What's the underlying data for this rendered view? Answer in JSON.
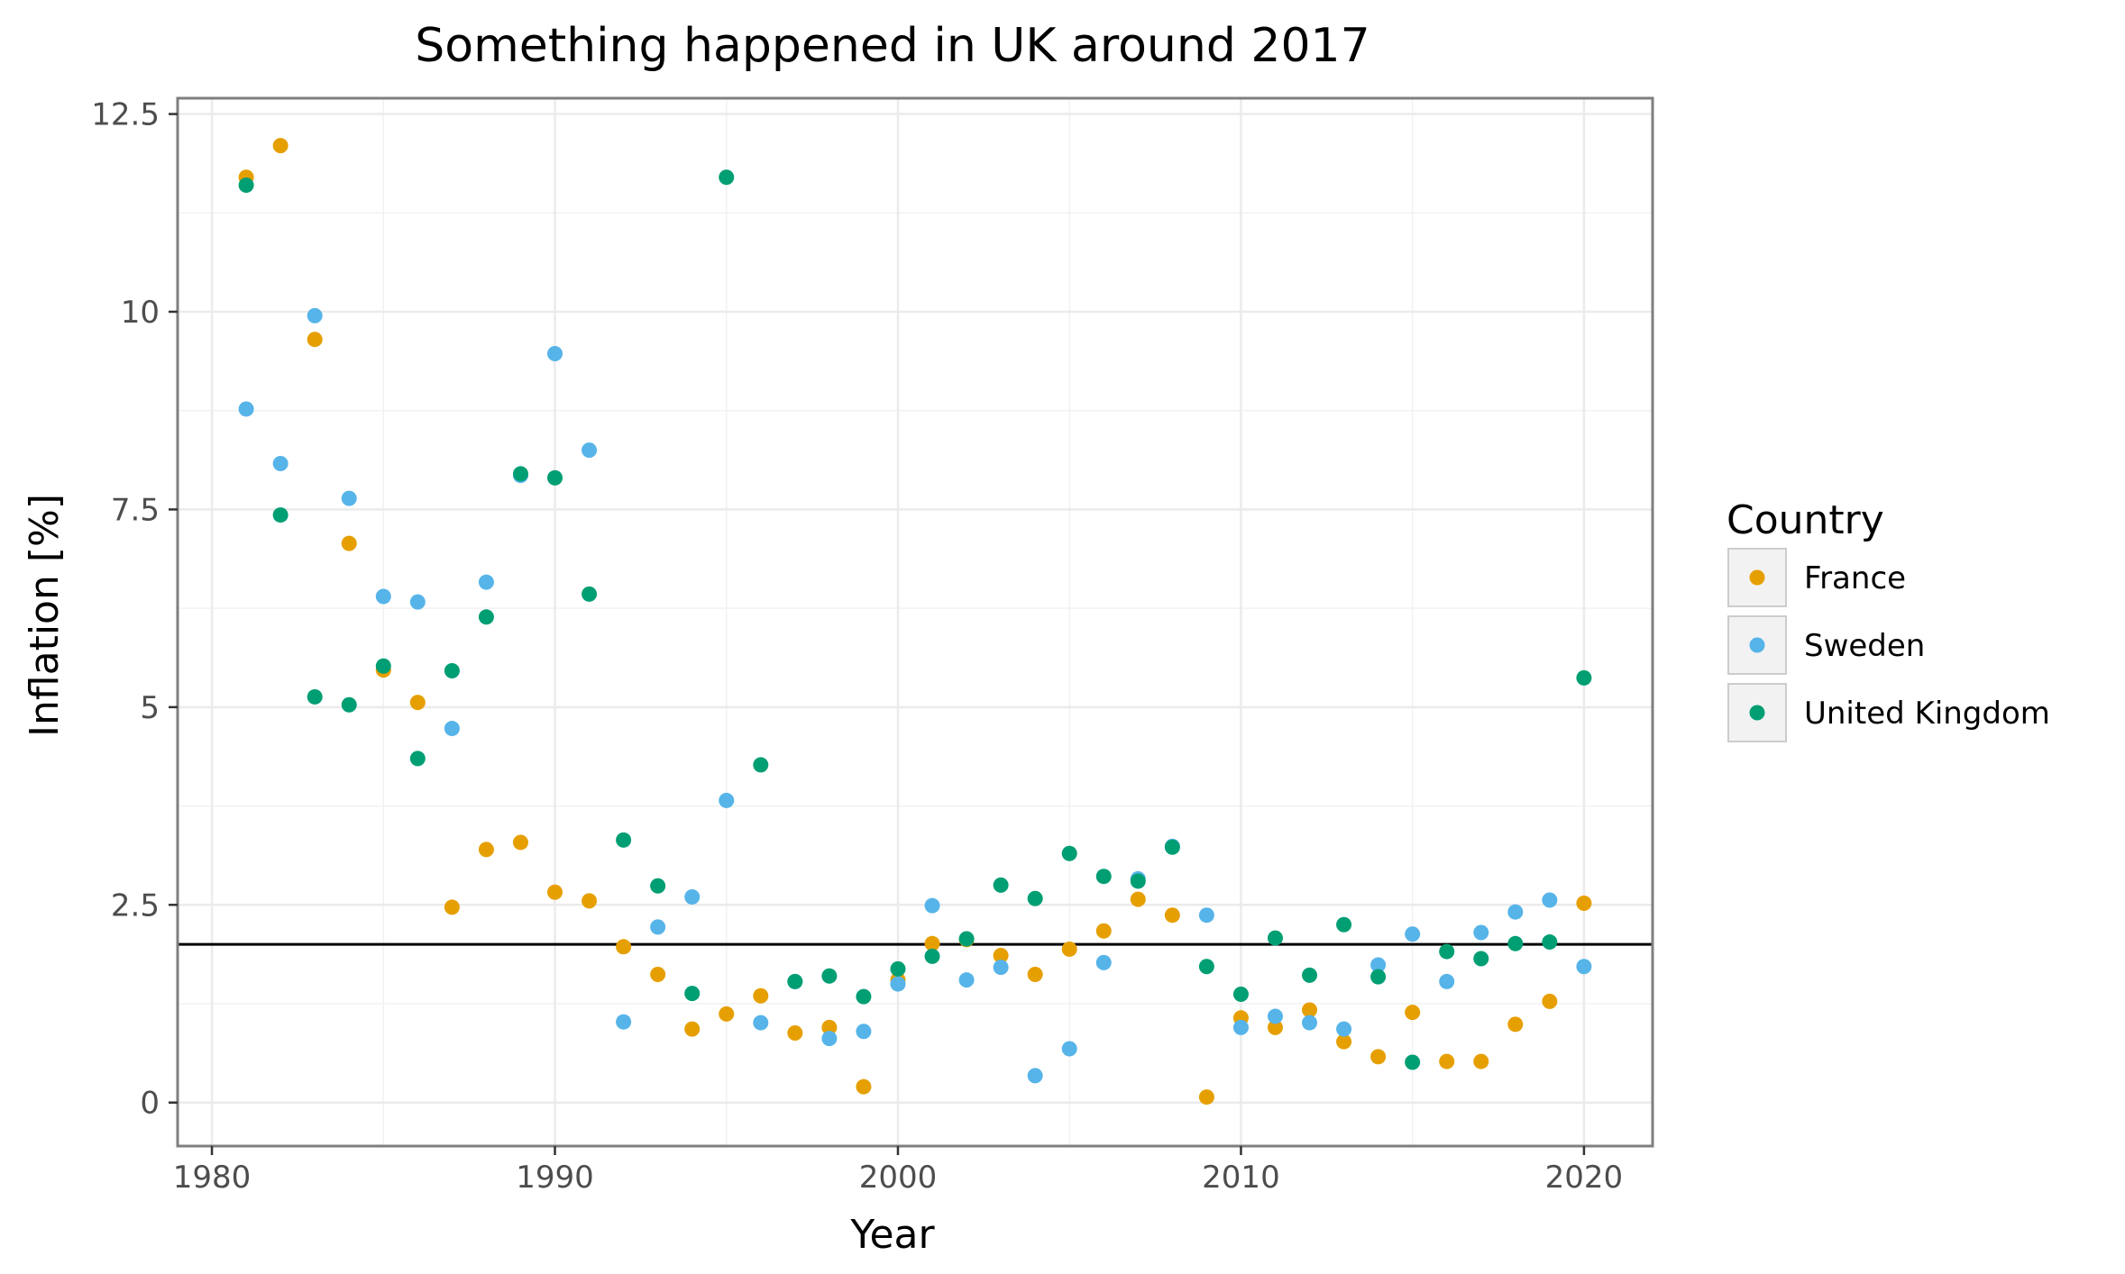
{
  "chart_data": {
    "type": "scatter",
    "title": "Something happened in UK around 2017",
    "xlabel": "Year",
    "ylabel": "Inflation [%]",
    "xlim": [
      1979,
      2022
    ],
    "ylim": [
      -0.55,
      12.7
    ],
    "xticks": [
      1980,
      1990,
      2000,
      2010,
      2020
    ],
    "yticks": [
      0,
      2.5,
      5,
      7.5,
      10,
      12.5
    ],
    "ytick_labels": [
      "0",
      "2.5",
      "5",
      "7.5",
      "10",
      "12.5"
    ],
    "grid": true,
    "reference_line": {
      "y": 2.0,
      "color": "#000000"
    },
    "legend": {
      "title": "Country",
      "placement": "right"
    },
    "series": [
      {
        "name": "France",
        "color": "#E69F00",
        "points": [
          [
            1981,
            11.7
          ],
          [
            1982,
            12.1
          ],
          [
            1983,
            9.65
          ],
          [
            1984,
            7.07
          ],
          [
            1985,
            5.47
          ],
          [
            1986,
            5.06
          ],
          [
            1987,
            2.47
          ],
          [
            1988,
            3.2
          ],
          [
            1989,
            3.29
          ],
          [
            1990,
            2.66
          ],
          [
            1991,
            2.55
          ],
          [
            1992,
            1.97
          ],
          [
            1993,
            1.62
          ],
          [
            1994,
            0.93
          ],
          [
            1995,
            1.12
          ],
          [
            1996,
            1.35
          ],
          [
            1997,
            0.88
          ],
          [
            1998,
            0.95
          ],
          [
            1999,
            0.2
          ],
          [
            2000,
            1.55
          ],
          [
            2001,
            2.01
          ],
          [
            2002,
            2.06
          ],
          [
            2003,
            1.86
          ],
          [
            2004,
            1.62
          ],
          [
            2005,
            1.94
          ],
          [
            2006,
            2.17
          ],
          [
            2007,
            2.57
          ],
          [
            2008,
            2.37
          ],
          [
            2009,
            0.07
          ],
          [
            2010,
            1.07
          ],
          [
            2011,
            0.95
          ],
          [
            2012,
            1.17
          ],
          [
            2013,
            0.77
          ],
          [
            2014,
            0.58
          ],
          [
            2015,
            1.14
          ],
          [
            2016,
            0.52
          ],
          [
            2017,
            0.52
          ],
          [
            2018,
            0.99
          ],
          [
            2019,
            1.28
          ],
          [
            2020,
            2.52
          ]
        ]
      },
      {
        "name": "Sweden",
        "color": "#56B4E9",
        "points": [
          [
            1981,
            8.77
          ],
          [
            1982,
            8.08
          ],
          [
            1983,
            9.95
          ],
          [
            1984,
            7.64
          ],
          [
            1985,
            6.4
          ],
          [
            1986,
            6.33
          ],
          [
            1987,
            4.73
          ],
          [
            1988,
            6.58
          ],
          [
            1989,
            7.93
          ],
          [
            1990,
            9.47
          ],
          [
            1991,
            8.25
          ],
          [
            1992,
            1.02
          ],
          [
            1993,
            2.22
          ],
          [
            1994,
            2.6
          ],
          [
            1995,
            3.82
          ],
          [
            1996,
            1.01
          ],
          [
            1997,
            1.53
          ],
          [
            1998,
            0.81
          ],
          [
            1999,
            0.9
          ],
          [
            2000,
            1.5
          ],
          [
            2001,
            2.49
          ],
          [
            2002,
            1.55
          ],
          [
            2003,
            1.71
          ],
          [
            2004,
            0.34
          ],
          [
            2005,
            0.68
          ],
          [
            2006,
            1.77
          ],
          [
            2007,
            2.83
          ],
          [
            2008,
            3.24
          ],
          [
            2009,
            2.37
          ],
          [
            2010,
            0.95
          ],
          [
            2011,
            1.09
          ],
          [
            2012,
            1.01
          ],
          [
            2013,
            0.93
          ],
          [
            2014,
            1.74
          ],
          [
            2015,
            2.13
          ],
          [
            2016,
            1.53
          ],
          [
            2017,
            2.15
          ],
          [
            2018,
            2.41
          ],
          [
            2019,
            2.56
          ],
          [
            2020,
            1.72
          ]
        ]
      },
      {
        "name": "United Kingdom",
        "color": "#009E73",
        "points": [
          [
            1981,
            11.6
          ],
          [
            1982,
            7.43
          ],
          [
            1983,
            5.13
          ],
          [
            1984,
            5.03
          ],
          [
            1985,
            5.52
          ],
          [
            1986,
            4.35
          ],
          [
            1987,
            5.46
          ],
          [
            1988,
            6.14
          ],
          [
            1989,
            7.95
          ],
          [
            1990,
            7.9
          ],
          [
            1991,
            6.43
          ],
          [
            1992,
            3.32
          ],
          [
            1993,
            2.74
          ],
          [
            1994,
            1.38
          ],
          [
            1995,
            11.7
          ],
          [
            1996,
            4.27
          ],
          [
            1997,
            1.53
          ],
          [
            1998,
            1.6
          ],
          [
            1999,
            1.34
          ],
          [
            2000,
            1.69
          ],
          [
            2001,
            1.85
          ],
          [
            2002,
            2.07
          ],
          [
            2003,
            2.75
          ],
          [
            2004,
            2.58
          ],
          [
            2005,
            3.15
          ],
          [
            2006,
            2.86
          ],
          [
            2007,
            2.8
          ],
          [
            2008,
            3.23
          ],
          [
            2009,
            1.72
          ],
          [
            2010,
            1.37
          ],
          [
            2011,
            2.08
          ],
          [
            2012,
            1.61
          ],
          [
            2013,
            2.25
          ],
          [
            2014,
            1.59
          ],
          [
            2015,
            0.51
          ],
          [
            2016,
            1.91
          ],
          [
            2017,
            1.82
          ],
          [
            2018,
            2.01
          ],
          [
            2019,
            2.03
          ],
          [
            2020,
            5.37
          ]
        ]
      }
    ]
  }
}
